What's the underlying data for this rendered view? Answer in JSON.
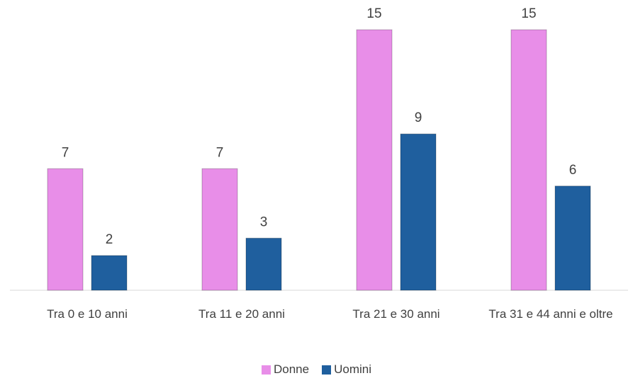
{
  "chart_data": {
    "type": "bar",
    "categories": [
      "Tra 0 e 10 anni",
      "Tra 11 e 20 anni",
      "Tra 21 e 30 anni",
      "Tra 31 e 44 anni e oltre"
    ],
    "series": [
      {
        "name": "Donne",
        "color": "#e88ee8",
        "values": [
          7,
          7,
          15,
          15
        ]
      },
      {
        "name": "Uomini",
        "color": "#1f5f9e",
        "values": [
          2,
          3,
          9,
          6
        ]
      }
    ],
    "ylim": [
      0,
      15
    ]
  }
}
